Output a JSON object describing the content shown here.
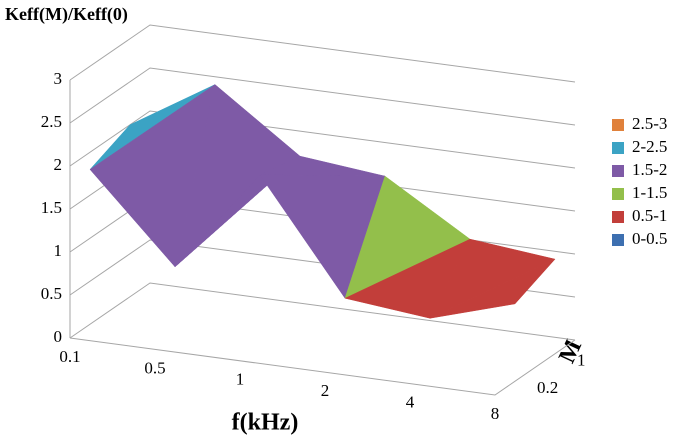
{
  "chart_data": {
    "type": "surface",
    "title": "Keff(M)/Keff(0)",
    "xlabel": "f(kHz)",
    "depthlabel": "M",
    "categories": [
      "0.1",
      "0.5",
      "1",
      "2",
      "4",
      "8"
    ],
    "series": [
      {
        "name": "0.2",
        "values": [
          1.8,
          0.8,
          2.0,
          0.7,
          0.6,
          0.9
        ]
      },
      {
        "name": "1",
        "values": [
          2.0,
          2.6,
          1.9,
          1.8,
          1.2,
          1.1
        ]
      }
    ],
    "zlim": [
      0,
      3
    ],
    "zticks": [
      0,
      0.5,
      1,
      1.5,
      2,
      2.5,
      3
    ],
    "bands": [
      {
        "range": [
          2.5,
          3
        ],
        "label": "2.5-3",
        "color": "#e0813b"
      },
      {
        "range": [
          2,
          2.5
        ],
        "label": "2-2.5",
        "color": "#3ba3c4"
      },
      {
        "range": [
          1.5,
          2
        ],
        "label": "1.5-2",
        "color": "#7e5aa6"
      },
      {
        "range": [
          1,
          1.5
        ],
        "label": "1-1.5",
        "color": "#93bf4b"
      },
      {
        "range": [
          0.5,
          1
        ],
        "label": "0.5-1",
        "color": "#c23e3a"
      },
      {
        "range": [
          0,
          0.5
        ],
        "label": "0-0.5",
        "color": "#3d6fb0"
      }
    ]
  }
}
